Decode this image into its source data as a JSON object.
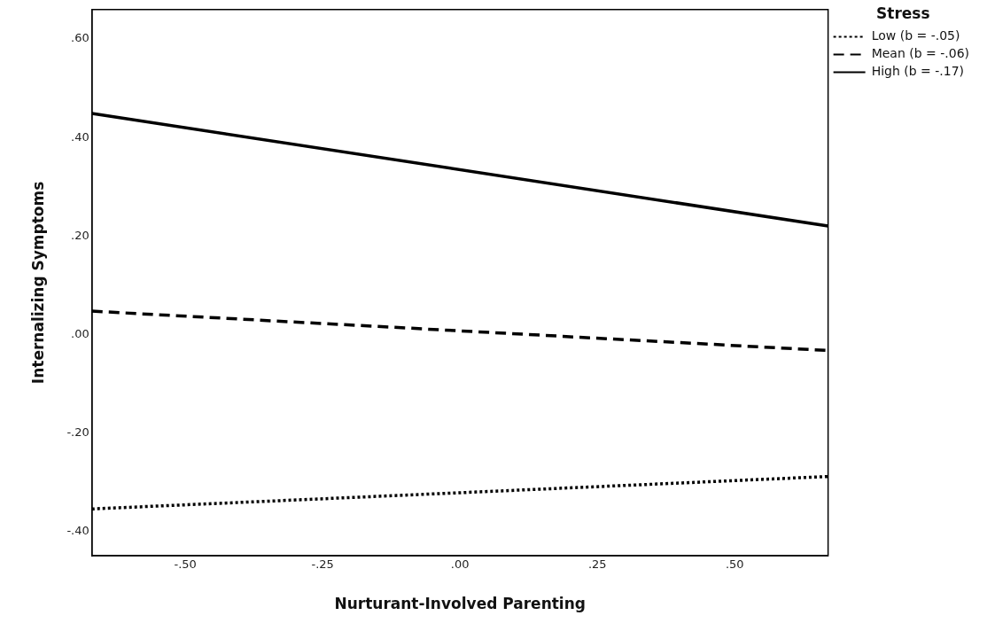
{
  "chart_data": {
    "type": "line",
    "xlabel": "Nurturant-Involved Parenting",
    "ylabel": "Internalizing Symptoms",
    "legend_title": "Stress",
    "xlim": [
      -0.67,
      0.67
    ],
    "ylim": [
      -0.45,
      0.66
    ],
    "xticks": [
      {
        "value": -0.5,
        "label": "-.50"
      },
      {
        "value": -0.25,
        "label": "-.25"
      },
      {
        "value": 0,
        "label": ".00"
      },
      {
        "value": 0.25,
        "label": ".25"
      },
      {
        "value": 0.5,
        "label": ".50"
      }
    ],
    "yticks": [
      {
        "value": -0.4,
        "label": "-.40"
      },
      {
        "value": -0.2,
        "label": "-.20"
      },
      {
        "value": 0,
        "label": ".00"
      },
      {
        "value": 0.2,
        "label": ".20"
      },
      {
        "value": 0.4,
        "label": ".40"
      },
      {
        "value": 0.6,
        "label": ".60"
      }
    ],
    "grid": false,
    "legend": "top right",
    "marker": "none",
    "x": [
      -0.67,
      0.67
    ],
    "series": [
      {
        "name": "Low (b = -.05)",
        "color": "#000000",
        "line_style": "dotted",
        "values": [
          -0.355,
          -0.289
        ]
      },
      {
        "name": "Mean (b = -.06)",
        "color": "#000000",
        "line_style": "dashed",
        "values": [
          0.047,
          -0.033
        ]
      },
      {
        "name": "High (b = -.17)",
        "color": "#000000",
        "line_style": "solid",
        "values": [
          0.449,
          0.22
        ]
      }
    ]
  }
}
